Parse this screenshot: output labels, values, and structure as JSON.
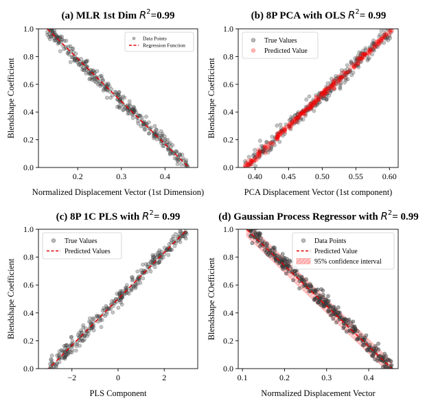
{
  "figure": {
    "background": "#ffffff",
    "point_dark": "#3a3a3a",
    "point_red": "#ff0000",
    "line_red": "#e00000"
  },
  "chart_data": [
    {
      "type": "scatter",
      "title_main": "(a) MLR 1st Dim ",
      "title_r2": "R",
      "title_sup": "2",
      "title_val": "=0.99",
      "xlabel": "Normalized Displacement Vector (1st Dimension)",
      "ylabel": "Blendshape Coefficient",
      "xlim": [
        0.11,
        0.475
      ],
      "ylim": [
        0.0,
        1.0
      ],
      "xticks": [
        0.2,
        0.3,
        0.4
      ],
      "xtick_labels": [
        "0.2",
        "0.3",
        "0.4"
      ],
      "yticks": [
        0.0,
        0.2,
        0.4,
        0.6,
        0.8,
        1.0
      ],
      "ytick_labels": [
        "0.0",
        "0.2",
        "0.4",
        "0.6",
        "0.8",
        "1.0"
      ],
      "legend_position": "upper-right",
      "legend": [
        {
          "label": "Data Points",
          "kind": "marker"
        },
        {
          "label": "Regression Function",
          "kind": "dashed"
        }
      ],
      "series": [
        {
          "name": "Data Points",
          "kind": "scatter",
          "color": "#3a3a3a",
          "alpha": 0.3,
          "x_from": 0.13,
          "x_to": 0.455,
          "y_at_x_from": 1.0,
          "y_at_x_to": 0.0,
          "noise": 0.03,
          "count": 340,
          "seed": 11
        },
        {
          "name": "Regression Function",
          "kind": "line",
          "dashed": true,
          "color": "#e00000",
          "x": [
            0.13,
            0.455
          ],
          "y": [
            1.0,
            0.0
          ]
        }
      ]
    },
    {
      "type": "scatter",
      "title_main": "(b) 8P PCA with OLS ",
      "title_r2": "R",
      "title_sup": "2",
      "title_val": "= 0.99",
      "xlabel": "PCA Displacement Vector (1st component)",
      "ylabel": "Blendshape Coefficient",
      "xlim": [
        0.375,
        0.613
      ],
      "ylim": [
        0.0,
        1.0
      ],
      "xticks": [
        0.4,
        0.45,
        0.5,
        0.55,
        0.6
      ],
      "xtick_labels": [
        "0.40",
        "0.45",
        "0.50",
        "0.55",
        "0.60"
      ],
      "yticks": [
        0.0,
        0.2,
        0.4,
        0.6,
        0.8,
        1.0
      ],
      "ytick_labels": [
        "0.0",
        "0.2",
        "0.4",
        "0.6",
        "0.8",
        "1.0"
      ],
      "legend_position": "upper-left",
      "legend": [
        {
          "label": "True Values",
          "kind": "marker"
        },
        {
          "label": "Predicted Value",
          "kind": "marker-red"
        }
      ],
      "series": [
        {
          "name": "True Values",
          "kind": "scatter",
          "color": "#3a3a3a",
          "alpha": 0.3,
          "x_from": 0.385,
          "x_to": 0.605,
          "y_at_x_from": 0.0,
          "y_at_x_to": 1.0,
          "noise": 0.03,
          "count": 320,
          "seed": 21
        },
        {
          "name": "Predicted Value",
          "kind": "scatter",
          "color": "#ff0000",
          "alpha": 0.22,
          "x_from": 0.385,
          "x_to": 0.605,
          "y_at_x_from": 0.0,
          "y_at_x_to": 1.0,
          "noise": 0.012,
          "count": 320,
          "seed": 22
        }
      ]
    },
    {
      "type": "scatter",
      "title_main": "(c) 8P 1C PLS with ",
      "title_r2": "R",
      "title_sup": "2",
      "title_val": "= 0.99",
      "xlabel": "PLS Component",
      "ylabel": "Blendshape Coefficient",
      "xlim": [
        -3.45,
        3.45
      ],
      "ylim": [
        0.0,
        1.0
      ],
      "xticks": [
        -2,
        0,
        2
      ],
      "xtick_labels": [
        "−2",
        "0",
        "2"
      ],
      "yticks": [
        0.0,
        0.2,
        0.4,
        0.6,
        0.8,
        1.0
      ],
      "ytick_labels": [
        "0.0",
        "0.2",
        "0.4",
        "0.6",
        "0.8",
        "1.0"
      ],
      "legend_position": "upper-left",
      "legend": [
        {
          "label": "True Values",
          "kind": "marker"
        },
        {
          "label": "Predicted Values",
          "kind": "dashed"
        }
      ],
      "series": [
        {
          "name": "True Values",
          "kind": "scatter",
          "color": "#3a3a3a",
          "alpha": 0.3,
          "x_from": -3.0,
          "x_to": 3.0,
          "y_at_x_from": 0.0,
          "y_at_x_to": 1.0,
          "noise": 0.03,
          "count": 320,
          "seed": 31
        },
        {
          "name": "Predicted Values",
          "kind": "line",
          "dashed": true,
          "color": "#e00000",
          "x": [
            -3.3,
            3.3
          ],
          "y": [
            -0.05,
            1.05
          ]
        }
      ]
    },
    {
      "type": "scatter",
      "title_main": "(d) Gaussian Process Regressor with ",
      "title_r2": "R",
      "title_sup": "2",
      "title_val": "= 0.99",
      "xlabel": "Normalized Displacement Vector",
      "ylabel": "Blendshape COefficient",
      "xlim": [
        0.09,
        0.47
      ],
      "ylim": [
        0.0,
        1.0
      ],
      "xticks": [
        0.1,
        0.2,
        0.3,
        0.4
      ],
      "xtick_labels": [
        "0.1",
        "0.2",
        "0.3",
        "0.4"
      ],
      "yticks": [
        0.0,
        0.2,
        0.4,
        0.6,
        0.8,
        1.0
      ],
      "ytick_labels": [
        "0.0",
        "0.2",
        "0.4",
        "0.6",
        "0.8",
        "1.0"
      ],
      "legend_position": "upper-right",
      "legend": [
        {
          "label": "Data Points",
          "kind": "marker"
        },
        {
          "label": "Predicted Value",
          "kind": "dashed"
        },
        {
          "label": "95% confidence interval",
          "kind": "hatch"
        }
      ],
      "series": [
        {
          "name": "95% confidence interval",
          "kind": "band",
          "color": "#ff8080",
          "x": [
            0.11,
            0.455
          ],
          "y": [
            1.0,
            0.0
          ],
          "halfwidth": 0.05
        },
        {
          "name": "Data Points",
          "kind": "scatter",
          "color": "#3a3a3a",
          "alpha": 0.45,
          "x_from": 0.115,
          "x_to": 0.455,
          "y_at_x_from": 1.0,
          "y_at_x_to": 0.0,
          "noise": 0.03,
          "count": 340,
          "seed": 41
        },
        {
          "name": "Predicted Value",
          "kind": "line",
          "dashed": true,
          "color": "#e00000",
          "x": [
            0.11,
            0.455
          ],
          "y": [
            1.0,
            0.0
          ]
        }
      ]
    }
  ]
}
